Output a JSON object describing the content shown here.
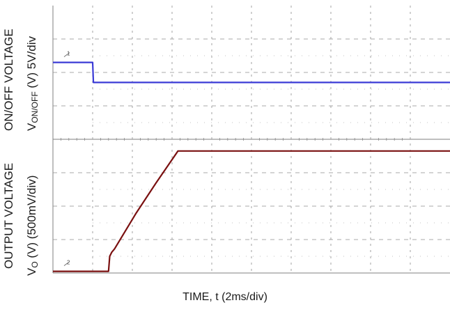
{
  "chart_data": [
    {
      "type": "line",
      "label_line1": "ON/OFF VOLTAGE",
      "label_line2_main": "V",
      "label_line2_sub": "ON/OFF",
      "label_line2_rest": " (V) 5V/div",
      "channel_marker": "1",
      "series": [
        {
          "color": "#3b3bd6",
          "x": [
            0,
            1,
            1.02,
            10
          ],
          "y": [
            2.3,
            2.3,
            1.7,
            1.7
          ]
        }
      ]
    },
    {
      "type": "line",
      "label_line1": "OUTPUT VOLTAGE",
      "label_line2_main": "V",
      "label_line2_sub": "O",
      "label_line2_rest": " (V) (500mV/div)",
      "channel_marker": "2",
      "series": [
        {
          "color": "#7a1010",
          "x": [
            0,
            1.4,
            1.43,
            1.48,
            1.55,
            2.1,
            2.6,
            3.15,
            3.2,
            10
          ],
          "y": [
            0.05,
            0.05,
            0.5,
            0.62,
            0.72,
            1.8,
            2.7,
            3.65,
            3.65,
            3.65
          ]
        }
      ]
    }
  ],
  "x_axis": {
    "label": "TIME, t (2ms/div)",
    "divisions": 10
  },
  "grid": true,
  "colors": {
    "frame": "#7f7f7f",
    "grid": "#8c8c8c",
    "dot": "#b0b0b0"
  }
}
